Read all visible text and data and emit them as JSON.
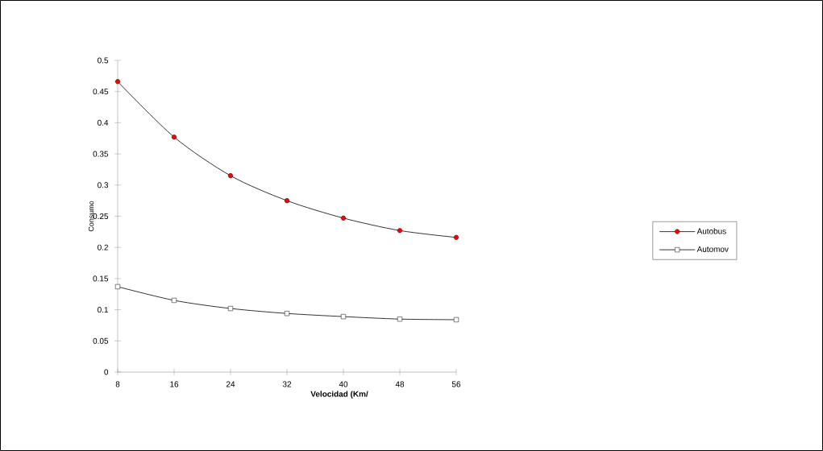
{
  "chart_data": {
    "type": "line",
    "xlabel": "Velocidad (Km/",
    "ylabel": "Consumo",
    "x": [
      8,
      16,
      24,
      32,
      40,
      48,
      56
    ],
    "series": [
      {
        "name": "Autobus",
        "color": "#ff0000",
        "marker": "circle",
        "values": [
          0.466,
          0.377,
          0.315,
          0.275,
          0.247,
          0.227,
          0.216
        ]
      },
      {
        "name": "Automov",
        "color": "#ffffff",
        "marker": "square",
        "values": [
          0.137,
          0.115,
          0.102,
          0.094,
          0.089,
          0.085,
          0.084
        ]
      }
    ],
    "xlim": [
      8,
      56
    ],
    "xticks": [
      8,
      16,
      24,
      32,
      40,
      48,
      56
    ],
    "ylim": [
      0,
      0.5
    ],
    "yticks": [
      0,
      {
        "value": 0.05,
        "label": "0.05"
      },
      {
        "value": 0.1,
        "label": "0.1"
      },
      {
        "value": 0.15,
        "label": "0.15"
      },
      {
        "value": 0.2,
        "label": "0.2"
      },
      {
        "value": 0.25,
        "label": "0.25"
      },
      {
        "value": 0.3,
        "label": "0.3"
      },
      {
        "value": 0.35,
        "label": "0.35"
      },
      {
        "value": 0.4,
        "label": "0.4"
      },
      {
        "value": 0.45,
        "label": "0.45"
      },
      {
        "value": 0.5,
        "label": "0.5"
      }
    ],
    "grid": false,
    "legend": "right"
  }
}
